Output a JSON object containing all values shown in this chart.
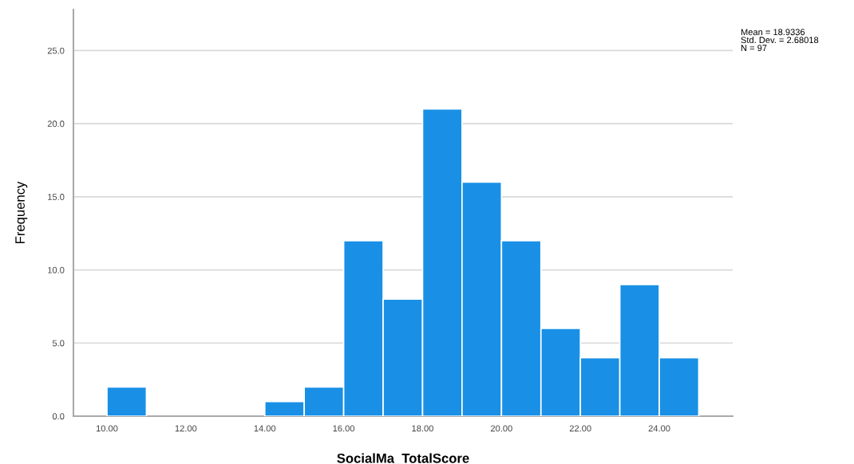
{
  "chart_data": {
    "type": "histogram",
    "xlabel": "SocialMa_TotalScore",
    "ylabel": "Frequency",
    "bins": [
      10,
      11,
      12,
      13,
      14,
      15,
      16,
      17,
      18,
      19,
      20,
      21,
      22,
      23,
      24,
      25
    ],
    "values": [
      2,
      0,
      0,
      0,
      1,
      2,
      12,
      8,
      21,
      16,
      12,
      6,
      4,
      9,
      4
    ],
    "color": "#1990e6",
    "xlim": [
      9.15,
      25.86
    ],
    "xticks": [
      {
        "value": 10,
        "label": "10.00"
      },
      {
        "value": 12,
        "label": "12.00"
      },
      {
        "value": 14,
        "label": "14.00"
      },
      {
        "value": 16,
        "label": "16.00"
      },
      {
        "value": 18,
        "label": "18.00"
      },
      {
        "value": 20,
        "label": "20.00"
      },
      {
        "value": 22,
        "label": "22.00"
      },
      {
        "value": 24,
        "label": "24.00"
      }
    ],
    "ylim": [
      0,
      27.8
    ],
    "yticks": [
      {
        "value": 0,
        "label": "0.0"
      },
      {
        "value": 5,
        "label": "5.0"
      },
      {
        "value": 10,
        "label": "10.0"
      },
      {
        "value": 15,
        "label": "15.0"
      },
      {
        "value": 20,
        "label": "20.0"
      },
      {
        "value": 25,
        "label": "25.0"
      }
    ],
    "grid": "y",
    "annotations": [
      "Mean = 18.9336\nStd. Dev. = 2.68018\nN = 97"
    ]
  }
}
